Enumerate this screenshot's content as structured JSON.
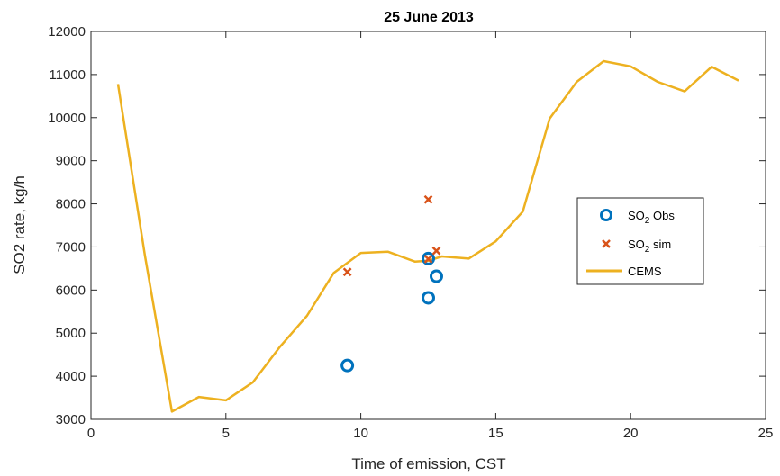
{
  "colors": {
    "obs": "#0072BD",
    "sim": "#D95319",
    "cems": "#EDB120",
    "axis": "#262626"
  },
  "legend": {
    "placement": "right",
    "obs_main": "SO",
    "obs_sub": "2",
    "obs_rest": " Obs",
    "sim_main": "SO",
    "sim_sub": "2",
    "sim_rest": " sim",
    "cems": "CEMS"
  },
  "chart_data": {
    "type": "line",
    "title": "25 June 2013",
    "xlabel": "Time of emission, CST",
    "ylabel": "SO2 rate, kg/h",
    "xlim": [
      0,
      25
    ],
    "ylim": [
      3000,
      12000
    ],
    "xticks": [
      0,
      5,
      10,
      15,
      20,
      25
    ],
    "yticks": [
      3000,
      4000,
      5000,
      6000,
      7000,
      8000,
      9000,
      10000,
      11000,
      12000
    ],
    "grid": false,
    "series": [
      {
        "name": "CEMS",
        "kind": "line",
        "x": [
          1,
          2,
          3,
          4,
          5,
          6,
          7,
          8,
          9,
          10,
          11,
          12,
          12.5,
          13,
          14,
          15,
          16,
          17,
          18,
          19,
          20,
          21,
          22,
          23,
          24
        ],
        "y": [
          10780,
          6800,
          3180,
          3520,
          3440,
          3860,
          4680,
          5400,
          6400,
          6860,
          6890,
          6660,
          6680,
          6780,
          6730,
          7130,
          7820,
          9980,
          10830,
          11310,
          11190,
          10830,
          10610,
          11180,
          10860
        ]
      },
      {
        "name": "SO2 Obs",
        "kind": "scatter",
        "marker": "circle",
        "x": [
          9.5,
          12.5,
          12.5,
          12.8
        ],
        "y": [
          4250,
          6730,
          5820,
          6320
        ]
      },
      {
        "name": "SO2 sim",
        "kind": "scatter",
        "marker": "x",
        "x": [
          9.5,
          12.5,
          12.5,
          12.8
        ],
        "y": [
          6420,
          8100,
          6720,
          6910
        ]
      }
    ]
  }
}
